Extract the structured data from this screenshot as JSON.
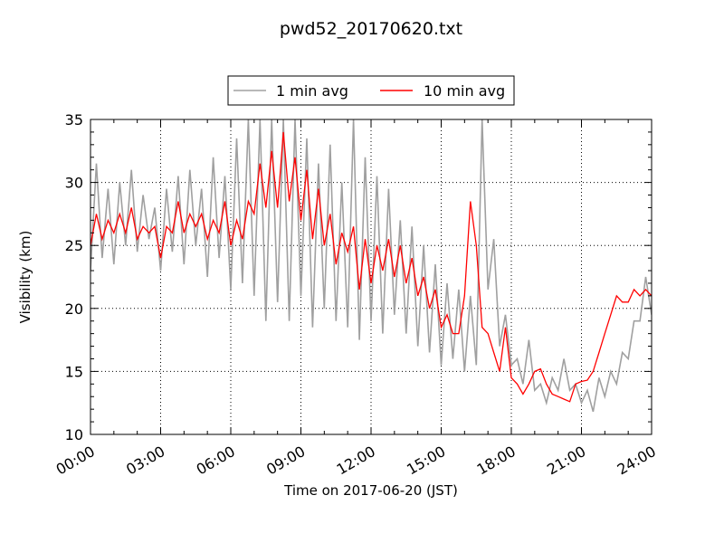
{
  "chart_data": {
    "type": "line",
    "title": "pwd52_20170620.txt",
    "xlabel": "Time on 2017-06-20 (JST)",
    "ylabel": "Visibility (km)",
    "xlim": [
      0,
      24
    ],
    "ylim": [
      10,
      35
    ],
    "xticks": [
      0,
      3,
      6,
      9,
      12,
      15,
      18,
      21,
      24
    ],
    "xtick_labels": [
      "00:00",
      "03:00",
      "06:00",
      "09:00",
      "12:00",
      "15:00",
      "18:00",
      "21:00",
      "24:00"
    ],
    "yticks": [
      10,
      15,
      20,
      25,
      30,
      35
    ],
    "ytick_labels": [
      "10",
      "15",
      "20",
      "25",
      "30",
      "35"
    ],
    "grid": true,
    "legend_position": "top-center",
    "series": [
      {
        "name": "1 min avg",
        "color": "#a0a0a0",
        "x": [
          0.0,
          0.25,
          0.5,
          0.75,
          1.0,
          1.25,
          1.5,
          1.75,
          2.0,
          2.25,
          2.5,
          2.75,
          3.0,
          3.25,
          3.5,
          3.75,
          4.0,
          4.25,
          4.5,
          4.75,
          5.0,
          5.25,
          5.5,
          5.75,
          6.0,
          6.25,
          6.5,
          6.75,
          7.0,
          7.25,
          7.5,
          7.75,
          8.0,
          8.25,
          8.5,
          8.75,
          9.0,
          9.25,
          9.5,
          9.75,
          10.0,
          10.25,
          10.5,
          10.75,
          11.0,
          11.25,
          11.5,
          11.75,
          12.0,
          12.25,
          12.5,
          12.75,
          13.0,
          13.25,
          13.5,
          13.75,
          14.0,
          14.25,
          14.5,
          14.75,
          15.0,
          15.25,
          15.5,
          15.75,
          16.0,
          16.25,
          16.5,
          16.75,
          17.0,
          17.25,
          17.5,
          17.75,
          18.0,
          18.25,
          18.5,
          18.75,
          19.0,
          19.25,
          19.5,
          19.75,
          20.0,
          20.25,
          20.5,
          20.75,
          21.0,
          21.25,
          21.5,
          21.75,
          22.0,
          22.25,
          22.5,
          22.75,
          23.0,
          23.25,
          23.5,
          23.75,
          24.0
        ],
        "y": [
          23.0,
          31.5,
          24.0,
          29.5,
          23.5,
          30.0,
          25.0,
          31.0,
          24.5,
          29.0,
          25.5,
          28.0,
          23.0,
          29.5,
          24.5,
          30.5,
          23.5,
          31.0,
          25.0,
          29.5,
          22.5,
          32.0,
          24.0,
          30.5,
          21.5,
          33.5,
          22.0,
          35.0,
          21.0,
          35.0,
          19.0,
          35.0,
          20.5,
          35.0,
          19.0,
          35.0,
          21.0,
          33.5,
          18.5,
          31.5,
          20.0,
          33.0,
          19.0,
          30.0,
          18.5,
          35.0,
          17.5,
          32.0,
          19.0,
          30.5,
          18.0,
          29.5,
          19.5,
          27.0,
          18.0,
          26.5,
          17.0,
          25.0,
          16.5,
          23.5,
          15.5,
          22.0,
          16.0,
          21.5,
          15.0,
          21.0,
          15.5,
          35.0,
          21.5,
          25.5,
          17.0,
          19.5,
          15.5,
          16.0,
          14.0,
          17.5,
          13.5,
          14.0,
          12.5,
          14.5,
          13.5,
          16.0,
          13.5,
          14.0,
          12.5,
          13.5,
          11.8,
          14.5,
          13.0,
          15.0,
          14.0,
          16.5,
          16.0,
          19.0,
          19.0,
          22.5,
          19.5
        ]
      },
      {
        "name": "10 min avg",
        "color": "#ff0000",
        "x": [
          0.0,
          0.25,
          0.5,
          0.75,
          1.0,
          1.25,
          1.5,
          1.75,
          2.0,
          2.25,
          2.5,
          2.75,
          3.0,
          3.25,
          3.5,
          3.75,
          4.0,
          4.25,
          4.5,
          4.75,
          5.0,
          5.25,
          5.5,
          5.75,
          6.0,
          6.25,
          6.5,
          6.75,
          7.0,
          7.25,
          7.5,
          7.75,
          8.0,
          8.25,
          8.5,
          8.75,
          9.0,
          9.25,
          9.5,
          9.75,
          10.0,
          10.25,
          10.5,
          10.75,
          11.0,
          11.25,
          11.5,
          11.75,
          12.0,
          12.25,
          12.5,
          12.75,
          13.0,
          13.25,
          13.5,
          13.75,
          14.0,
          14.25,
          14.5,
          14.75,
          15.0,
          15.25,
          15.5,
          15.75,
          16.0,
          16.25,
          16.5,
          16.75,
          17.0,
          17.25,
          17.5,
          17.75,
          18.0,
          18.25,
          18.5,
          18.75,
          19.0,
          19.25,
          19.5,
          19.75,
          20.0,
          20.25,
          20.5,
          20.75,
          21.0,
          21.25,
          21.5,
          21.75,
          22.0,
          22.25,
          22.5,
          22.75,
          23.0,
          23.25,
          23.5,
          23.75,
          24.0
        ],
        "y": [
          25.0,
          27.5,
          25.5,
          27.0,
          26.0,
          27.5,
          26.0,
          28.0,
          25.5,
          26.5,
          26.0,
          26.5,
          24.0,
          26.5,
          26.0,
          28.5,
          26.0,
          27.5,
          26.5,
          27.5,
          25.5,
          27.0,
          26.0,
          28.5,
          25.0,
          27.0,
          25.5,
          28.5,
          27.5,
          31.5,
          28.0,
          32.5,
          28.0,
          34.0,
          28.5,
          32.0,
          27.0,
          31.0,
          25.5,
          29.5,
          25.0,
          27.5,
          23.5,
          26.0,
          24.5,
          26.5,
          21.5,
          25.5,
          22.0,
          25.0,
          23.0,
          25.5,
          22.5,
          25.0,
          22.0,
          24.0,
          21.0,
          22.5,
          20.0,
          21.5,
          18.5,
          19.5,
          18.0,
          18.0,
          21.0,
          28.5,
          25.0,
          18.5,
          18.0,
          16.5,
          15.0,
          18.5,
          14.5,
          14.0,
          13.2,
          14.0,
          15.0,
          15.2,
          14.0,
          13.2,
          13.0,
          12.8,
          12.6,
          14.0,
          14.2,
          14.3,
          15.0,
          16.5,
          18.0,
          19.5,
          21.0,
          20.5,
          20.5,
          21.5,
          21.0,
          21.5,
          21.0
        ]
      }
    ]
  }
}
